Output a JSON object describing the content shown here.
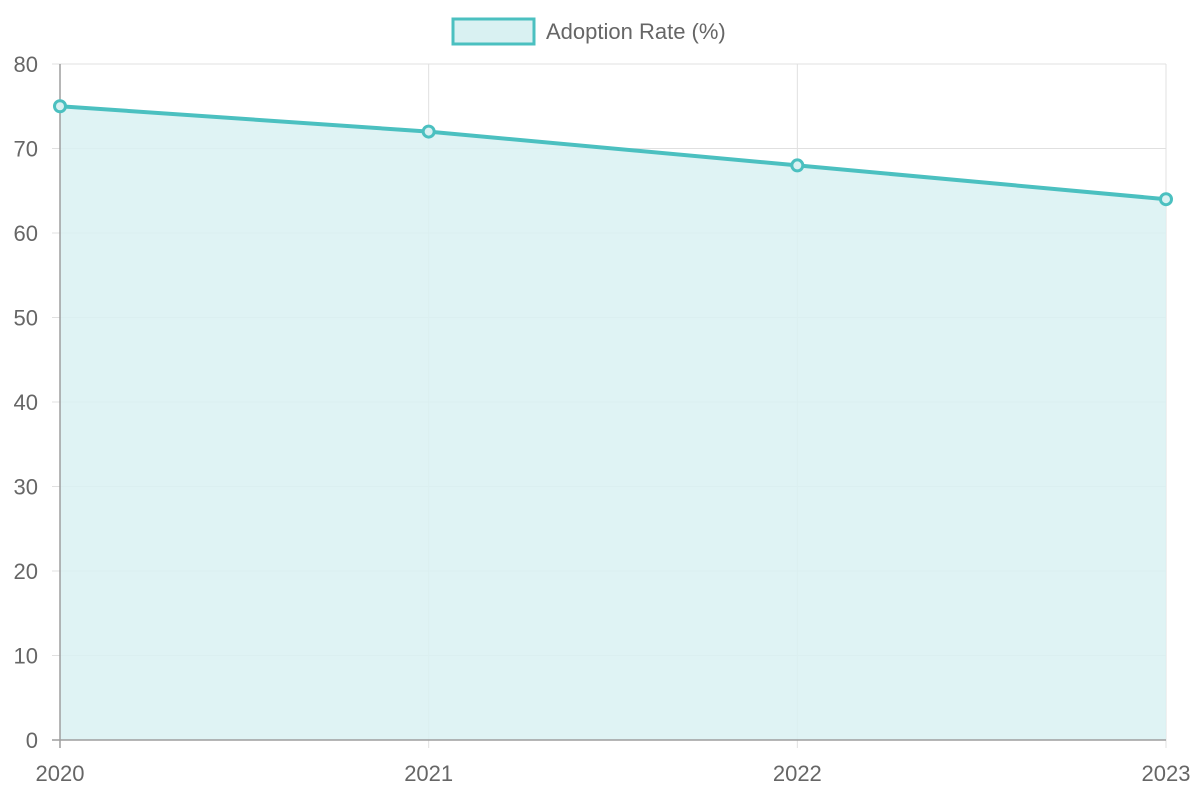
{
  "chart_data": {
    "type": "area",
    "categories": [
      "2020",
      "2021",
      "2022",
      "2023"
    ],
    "series": [
      {
        "name": "Adoption Rate (%)",
        "values": [
          75,
          72,
          68,
          64
        ]
      }
    ],
    "ylim": [
      0,
      80
    ],
    "yticks": [
      "0",
      "10",
      "20",
      "30",
      "40",
      "50",
      "60",
      "70",
      "80"
    ],
    "grid": true,
    "legend_position": "top-center",
    "colors": {
      "line": "#4bc0c0",
      "fill": "#d9f1f2",
      "grid": "#e0e0e0",
      "axis": "#9e9e9e",
      "text": "#666666"
    }
  }
}
